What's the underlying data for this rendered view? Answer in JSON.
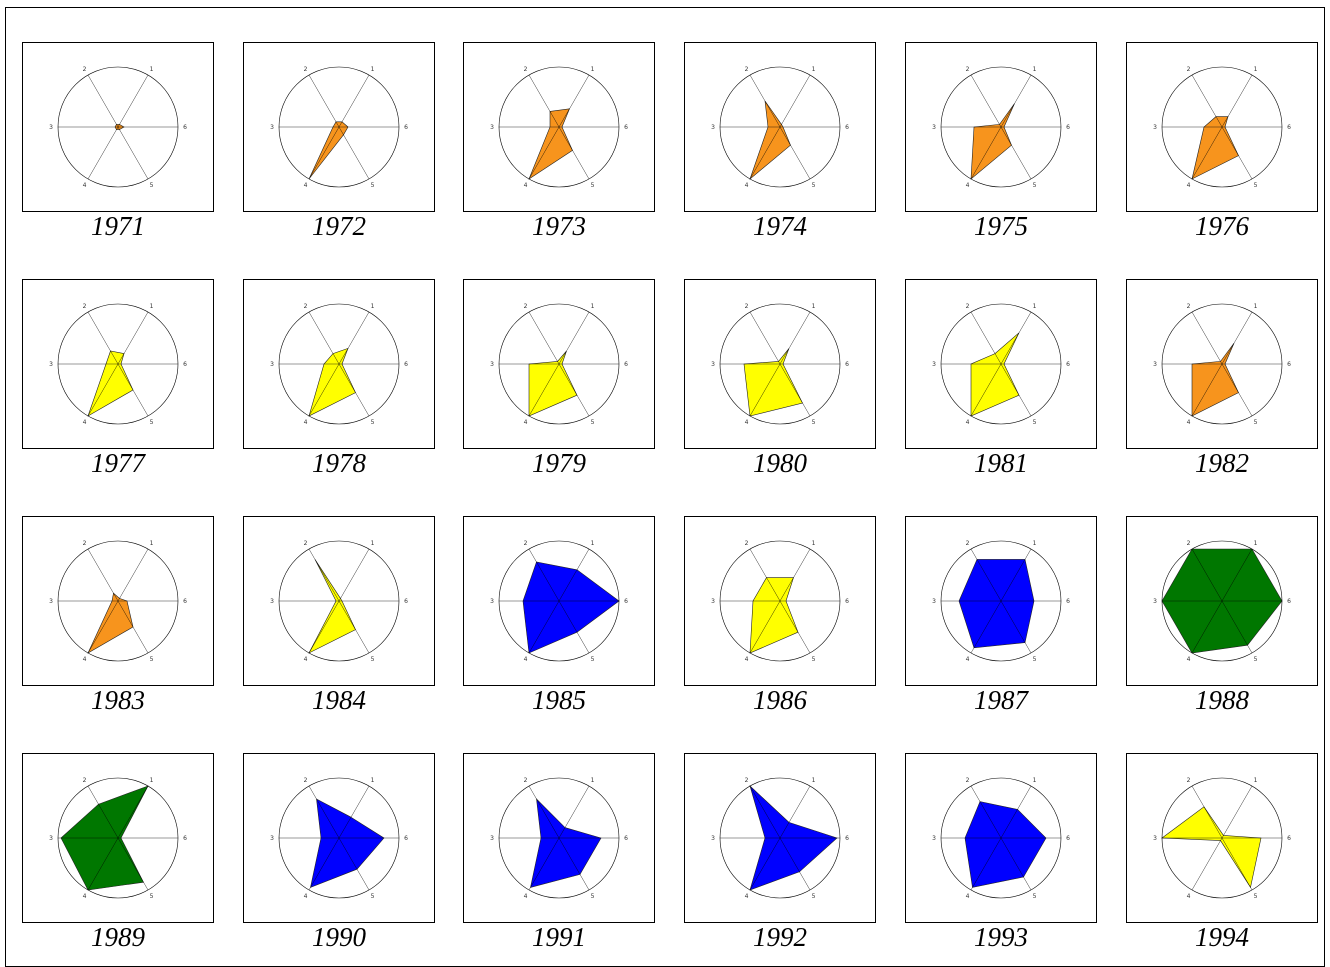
{
  "chart_data": {
    "type": "radar",
    "axes": [
      "1",
      "2",
      "3",
      "4",
      "5",
      "6"
    ],
    "rmax": 1,
    "colors": {
      "orange": "#F7941D",
      "yellow": "#FFFF00",
      "blue": "#0000FF",
      "green": "#007700"
    },
    "charts": [
      {
        "year": "1971",
        "color": "#F7941D",
        "values": [
          0.05,
          0.05,
          0.05,
          0.05,
          0.05,
          0.1
        ]
      },
      {
        "year": "1972",
        "color": "#F7941D",
        "values": [
          0.1,
          0.1,
          0.1,
          1.0,
          0.15,
          0.15
        ]
      },
      {
        "year": "1973",
        "color": "#F7941D",
        "values": [
          0.35,
          0.3,
          0.15,
          1.0,
          0.45,
          0.05
        ]
      },
      {
        "year": "1974",
        "color": "#F7941D",
        "values": [
          0.05,
          0.5,
          0.2,
          1.0,
          0.35,
          0.05
        ]
      },
      {
        "year": "1975",
        "color": "#F7941D",
        "values": [
          0.45,
          0.05,
          0.45,
          1.0,
          0.35,
          0.05
        ]
      },
      {
        "year": "1976",
        "color": "#F7941D",
        "values": [
          0.2,
          0.2,
          0.3,
          1.0,
          0.55,
          0.05
        ]
      },
      {
        "year": "1977",
        "color": "#FFFF00",
        "values": [
          0.2,
          0.25,
          0.2,
          1.0,
          0.5,
          0.05
        ]
      },
      {
        "year": "1978",
        "color": "#FFFF00",
        "values": [
          0.3,
          0.2,
          0.25,
          1.0,
          0.55,
          0.05
        ]
      },
      {
        "year": "1979",
        "color": "#FFFF00",
        "values": [
          0.25,
          0.05,
          0.5,
          1.0,
          0.6,
          0.05
        ]
      },
      {
        "year": "1980",
        "color": "#FFFF00",
        "values": [
          0.3,
          0.05,
          0.6,
          1.0,
          0.75,
          0.05
        ]
      },
      {
        "year": "1981",
        "color": "#FFFF00",
        "values": [
          0.6,
          0.2,
          0.5,
          1.0,
          0.6,
          0.05
        ]
      },
      {
        "year": "1982",
        "color": "#F7941D",
        "values": [
          0.4,
          0.05,
          0.5,
          1.0,
          0.55,
          0.05
        ]
      },
      {
        "year": "1983",
        "color": "#F7941D",
        "values": [
          0.05,
          0.15,
          0.1,
          1.0,
          0.5,
          0.15
        ]
      },
      {
        "year": "1984",
        "color": "#FFFF00",
        "values": [
          0.05,
          0.8,
          0.05,
          1.0,
          0.55,
          0.05
        ]
      },
      {
        "year": "1985",
        "color": "#0000FF",
        "values": [
          0.6,
          0.75,
          0.6,
          1.0,
          0.6,
          1.0
        ]
      },
      {
        "year": "1986",
        "color": "#FFFF00",
        "values": [
          0.45,
          0.45,
          0.45,
          1.0,
          0.6,
          0.1
        ]
      },
      {
        "year": "1987",
        "color": "#0000FF",
        "values": [
          0.8,
          0.8,
          0.7,
          0.9,
          0.8,
          0.55
        ]
      },
      {
        "year": "1988",
        "color": "#007700",
        "values": [
          1.0,
          1.0,
          1.0,
          1.0,
          0.85,
          1.0
        ]
      },
      {
        "year": "1989",
        "color": "#007700",
        "values": [
          1.0,
          0.65,
          0.95,
          1.0,
          0.85,
          0.05
        ]
      },
      {
        "year": "1990",
        "color": "#0000FF",
        "values": [
          0.4,
          0.75,
          0.3,
          0.95,
          0.6,
          0.75
        ]
      },
      {
        "year": "1991",
        "color": "#0000FF",
        "values": [
          0.2,
          0.75,
          0.3,
          0.95,
          0.7,
          0.7
        ]
      },
      {
        "year": "1992",
        "color": "#0000FF",
        "values": [
          0.3,
          1.0,
          0.25,
          1.0,
          0.65,
          0.95
        ]
      },
      {
        "year": "1993",
        "color": "#0000FF",
        "values": [
          0.55,
          0.7,
          0.6,
          0.95,
          0.75,
          0.75
        ]
      },
      {
        "year": "1994",
        "color": "#FFFF00",
        "values": [
          0.05,
          0.6,
          1.0,
          0.05,
          0.95,
          0.65
        ]
      }
    ]
  }
}
